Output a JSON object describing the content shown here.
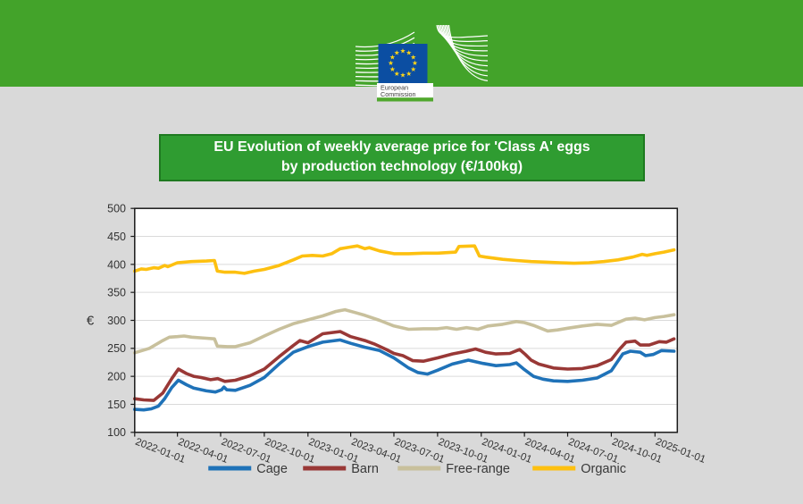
{
  "header": {
    "logo": {
      "line1": "European",
      "line2": "Commission"
    }
  },
  "title": {
    "line1": "EU Evolution of weekly average price for 'Class A' eggs",
    "line2": "by production technology (€/100kg)"
  },
  "colors": {
    "band_green": "#43a32a",
    "title_bg": "#2f9c31",
    "title_border": "#1e7a20",
    "logo_bar_green": "#50a82d",
    "eu_flag_blue": "#0b4ea2",
    "eu_star_gold": "#ffd617",
    "plot_bg": "#ffffff",
    "grid": "#dadada",
    "frame": "#1a1a1a",
    "axis_text": "#333333",
    "legend_text": "#383838"
  },
  "chart_data": {
    "type": "line",
    "title": "EU Evolution of weekly average price for 'Class A' eggs by production technology (€/100kg)",
    "ylabel": "€",
    "ylim": [
      100,
      500
    ],
    "yticks": [
      100,
      150,
      200,
      250,
      300,
      350,
      400,
      450,
      500
    ],
    "x_range": [
      "2022-01-01",
      "2025-02-16"
    ],
    "x_tick_labels": [
      "2022-01-01",
      "2022-04-01",
      "2022-07-01",
      "2022-10-01",
      "2023-01-01",
      "2023-04-01",
      "2023-07-01",
      "2023-10-01",
      "2024-01-01",
      "2024-04-01",
      "2024-07-01",
      "2024-10-01",
      "2025-01-01"
    ],
    "grid": "horizontal",
    "legend_position": "bottom",
    "series": [
      {
        "name": "Cage",
        "color": "#1f72b8",
        "points": [
          [
            "2022-01-01",
            141
          ],
          [
            "2022-01-20",
            140
          ],
          [
            "2022-02-05",
            142
          ],
          [
            "2022-02-20",
            147
          ],
          [
            "2022-03-05",
            160
          ],
          [
            "2022-03-20",
            180
          ],
          [
            "2022-04-03",
            193
          ],
          [
            "2022-04-20",
            185
          ],
          [
            "2022-05-05",
            179
          ],
          [
            "2022-06-01",
            174
          ],
          [
            "2022-06-20",
            172
          ],
          [
            "2022-07-03",
            176
          ],
          [
            "2022-07-08",
            181
          ],
          [
            "2022-07-14",
            176
          ],
          [
            "2022-08-01",
            175
          ],
          [
            "2022-09-01",
            184
          ],
          [
            "2022-10-01",
            198
          ],
          [
            "2022-11-01",
            222
          ],
          [
            "2022-12-01",
            243
          ],
          [
            "2023-01-01",
            253
          ],
          [
            "2023-02-01",
            261
          ],
          [
            "2023-03-10",
            265
          ],
          [
            "2023-04-01",
            259
          ],
          [
            "2023-05-01",
            252
          ],
          [
            "2023-06-01",
            246
          ],
          [
            "2023-07-01",
            233
          ],
          [
            "2023-08-01",
            215
          ],
          [
            "2023-08-20",
            207
          ],
          [
            "2023-09-10",
            204
          ],
          [
            "2023-10-01",
            211
          ],
          [
            "2023-11-01",
            222
          ],
          [
            "2023-12-05",
            229
          ],
          [
            "2024-01-05",
            223
          ],
          [
            "2024-02-01",
            219
          ],
          [
            "2024-03-01",
            221
          ],
          [
            "2024-03-15",
            224
          ],
          [
            "2024-04-01",
            212
          ],
          [
            "2024-04-20",
            200
          ],
          [
            "2024-05-10",
            195
          ],
          [
            "2024-06-01",
            192
          ],
          [
            "2024-07-01",
            191
          ],
          [
            "2024-08-01",
            193
          ],
          [
            "2024-09-01",
            197
          ],
          [
            "2024-10-01",
            210
          ],
          [
            "2024-10-25",
            240
          ],
          [
            "2024-11-10",
            245
          ],
          [
            "2024-12-01",
            243
          ],
          [
            "2024-12-12",
            237
          ],
          [
            "2024-12-28",
            239
          ],
          [
            "2025-01-15",
            246
          ],
          [
            "2025-02-10",
            245
          ]
        ]
      },
      {
        "name": "Barn",
        "color": "#993836",
        "points": [
          [
            "2022-01-01",
            160
          ],
          [
            "2022-01-20",
            158
          ],
          [
            "2022-02-10",
            157
          ],
          [
            "2022-03-01",
            170
          ],
          [
            "2022-03-20",
            196
          ],
          [
            "2022-04-03",
            213
          ],
          [
            "2022-04-20",
            205
          ],
          [
            "2022-05-05",
            200
          ],
          [
            "2022-05-20",
            198
          ],
          [
            "2022-06-10",
            194
          ],
          [
            "2022-06-25",
            196
          ],
          [
            "2022-07-10",
            191
          ],
          [
            "2022-08-01",
            193
          ],
          [
            "2022-09-01",
            201
          ],
          [
            "2022-10-01",
            213
          ],
          [
            "2022-11-01",
            235
          ],
          [
            "2022-12-01",
            255
          ],
          [
            "2022-12-15",
            264
          ],
          [
            "2023-01-01",
            260
          ],
          [
            "2023-02-01",
            276
          ],
          [
            "2023-03-10",
            280
          ],
          [
            "2023-04-01",
            271
          ],
          [
            "2023-05-01",
            264
          ],
          [
            "2023-05-20",
            258
          ],
          [
            "2023-06-15",
            248
          ],
          [
            "2023-07-01",
            241
          ],
          [
            "2023-07-20",
            237
          ],
          [
            "2023-08-10",
            228
          ],
          [
            "2023-09-01",
            227
          ],
          [
            "2023-10-01",
            233
          ],
          [
            "2023-11-01",
            240
          ],
          [
            "2023-12-01",
            245
          ],
          [
            "2023-12-20",
            249
          ],
          [
            "2024-01-10",
            243
          ],
          [
            "2024-02-01",
            240
          ],
          [
            "2024-03-01",
            241
          ],
          [
            "2024-03-22",
            248
          ],
          [
            "2024-04-03",
            239
          ],
          [
            "2024-04-15",
            229
          ],
          [
            "2024-05-01",
            222
          ],
          [
            "2024-06-01",
            215
          ],
          [
            "2024-07-01",
            213
          ],
          [
            "2024-08-01",
            214
          ],
          [
            "2024-09-01",
            219
          ],
          [
            "2024-10-01",
            230
          ],
          [
            "2024-10-20",
            250
          ],
          [
            "2024-11-01",
            261
          ],
          [
            "2024-11-20",
            263
          ],
          [
            "2024-12-01",
            256
          ],
          [
            "2024-12-20",
            256
          ],
          [
            "2025-01-10",
            262
          ],
          [
            "2025-01-25",
            261
          ],
          [
            "2025-02-10",
            267
          ]
        ]
      },
      {
        "name": "Free-range",
        "color": "#c8c09c",
        "points": [
          [
            "2022-01-01",
            242
          ],
          [
            "2022-02-01",
            250
          ],
          [
            "2022-03-01",
            264
          ],
          [
            "2022-03-15",
            270
          ],
          [
            "2022-04-01",
            271
          ],
          [
            "2022-04-15",
            272
          ],
          [
            "2022-05-01",
            270
          ],
          [
            "2022-06-01",
            268
          ],
          [
            "2022-06-18",
            267
          ],
          [
            "2022-06-24",
            254
          ],
          [
            "2022-07-15",
            253
          ],
          [
            "2022-08-01",
            253
          ],
          [
            "2022-09-01",
            260
          ],
          [
            "2022-10-01",
            272
          ],
          [
            "2022-11-01",
            284
          ],
          [
            "2022-12-01",
            294
          ],
          [
            "2023-01-01",
            301
          ],
          [
            "2023-02-01",
            308
          ],
          [
            "2023-03-01",
            316
          ],
          [
            "2023-03-20",
            319
          ],
          [
            "2023-04-10",
            314
          ],
          [
            "2023-05-01",
            309
          ],
          [
            "2023-06-01",
            300
          ],
          [
            "2023-07-01",
            290
          ],
          [
            "2023-08-01",
            284
          ],
          [
            "2023-09-01",
            285
          ],
          [
            "2023-10-01",
            285
          ],
          [
            "2023-10-20",
            287
          ],
          [
            "2023-11-10",
            284
          ],
          [
            "2023-12-01",
            287
          ],
          [
            "2023-12-25",
            284
          ],
          [
            "2024-01-15",
            290
          ],
          [
            "2024-02-15",
            293
          ],
          [
            "2024-03-15",
            298
          ],
          [
            "2024-04-01",
            296
          ],
          [
            "2024-04-20",
            291
          ],
          [
            "2024-05-20",
            281
          ],
          [
            "2024-06-10",
            283
          ],
          [
            "2024-07-01",
            286
          ],
          [
            "2024-08-01",
            290
          ],
          [
            "2024-09-01",
            293
          ],
          [
            "2024-10-01",
            291
          ],
          [
            "2024-10-20",
            298
          ],
          [
            "2024-11-01",
            302
          ],
          [
            "2024-11-20",
            304
          ],
          [
            "2024-12-10",
            301
          ],
          [
            "2025-01-01",
            305
          ],
          [
            "2025-01-20",
            307
          ],
          [
            "2025-02-10",
            310
          ]
        ]
      },
      {
        "name": "Organic",
        "color": "#fdc010",
        "points": [
          [
            "2022-01-01",
            388
          ],
          [
            "2022-01-15",
            392
          ],
          [
            "2022-01-25",
            391
          ],
          [
            "2022-02-10",
            394
          ],
          [
            "2022-02-20",
            393
          ],
          [
            "2022-03-05",
            398
          ],
          [
            "2022-03-12",
            396
          ],
          [
            "2022-04-01",
            403
          ],
          [
            "2022-05-01",
            405
          ],
          [
            "2022-06-01",
            406
          ],
          [
            "2022-06-18",
            407
          ],
          [
            "2022-06-24",
            388
          ],
          [
            "2022-07-10",
            386
          ],
          [
            "2022-08-01",
            386
          ],
          [
            "2022-08-20",
            384
          ],
          [
            "2022-09-10",
            388
          ],
          [
            "2022-10-01",
            391
          ],
          [
            "2022-11-01",
            398
          ],
          [
            "2022-12-01",
            408
          ],
          [
            "2022-12-20",
            415
          ],
          [
            "2023-01-10",
            416
          ],
          [
            "2023-02-01",
            415
          ],
          [
            "2023-02-20",
            419
          ],
          [
            "2023-03-10",
            428
          ],
          [
            "2023-04-01",
            431
          ],
          [
            "2023-04-15",
            433
          ],
          [
            "2023-05-01",
            428
          ],
          [
            "2023-05-10",
            430
          ],
          [
            "2023-06-01",
            424
          ],
          [
            "2023-07-01",
            419
          ],
          [
            "2023-08-01",
            419
          ],
          [
            "2023-09-01",
            420
          ],
          [
            "2023-10-01",
            420
          ],
          [
            "2023-11-08",
            422
          ],
          [
            "2023-11-15",
            432
          ],
          [
            "2023-12-18",
            433
          ],
          [
            "2023-12-28",
            415
          ],
          [
            "2024-01-10",
            413
          ],
          [
            "2024-02-15",
            409
          ],
          [
            "2024-03-15",
            407
          ],
          [
            "2024-04-15",
            405
          ],
          [
            "2024-05-15",
            404
          ],
          [
            "2024-06-15",
            403
          ],
          [
            "2024-07-15",
            402
          ],
          [
            "2024-08-15",
            403
          ],
          [
            "2024-09-15",
            405
          ],
          [
            "2024-10-15",
            408
          ],
          [
            "2024-11-15",
            413
          ],
          [
            "2024-12-05",
            418
          ],
          [
            "2024-12-15",
            416
          ],
          [
            "2025-01-01",
            419
          ],
          [
            "2025-01-20",
            422
          ],
          [
            "2025-02-10",
            426
          ]
        ]
      }
    ]
  }
}
